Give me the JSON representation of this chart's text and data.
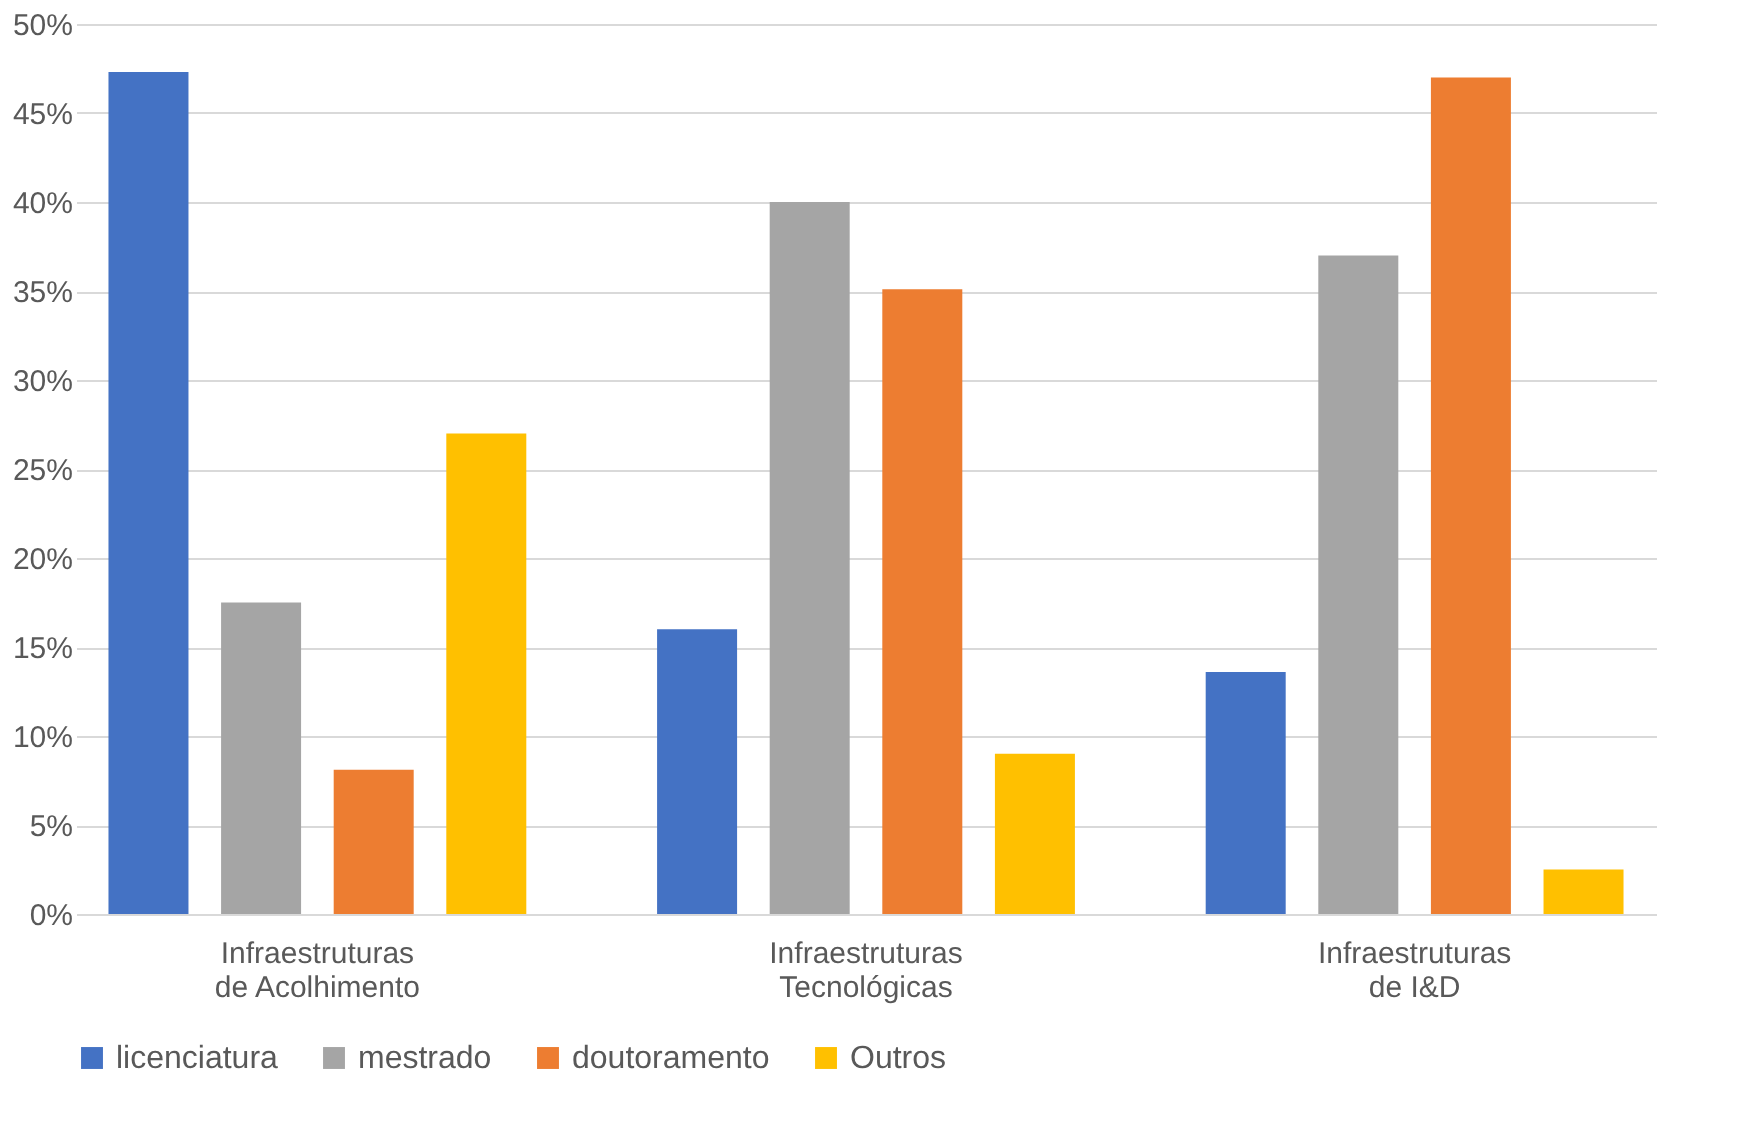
{
  "chart_data": {
    "type": "bar",
    "categories": [
      "Infraestruturas\nde Acolhimento",
      "Infraestruturas\nTecnológicas",
      "Infraestruturas\nde I&D"
    ],
    "series": [
      {
        "name": "licenciatura",
        "color": "#4472c4",
        "values": [
          47.3,
          16.0,
          13.6
        ]
      },
      {
        "name": "mestrado",
        "color": "#a5a5a5",
        "values": [
          17.5,
          40.0,
          37.0
        ]
      },
      {
        "name": "doutoramento",
        "color": "#ed7d31",
        "values": [
          8.1,
          35.1,
          47.0
        ]
      },
      {
        "name": "Outros",
        "color": "#ffc000",
        "values": [
          27.0,
          9.0,
          2.5
        ]
      }
    ],
    "ylim": [
      0,
      50
    ],
    "yticks": [
      {
        "value": 0,
        "label": "0%"
      },
      {
        "value": 5,
        "label": "5%"
      },
      {
        "value": 10,
        "label": "10%"
      },
      {
        "value": 15,
        "label": "15%"
      },
      {
        "value": 20,
        "label": "20%"
      },
      {
        "value": 25,
        "label": "25%"
      },
      {
        "value": 30,
        "label": "30%"
      },
      {
        "value": 35,
        "label": "35%"
      },
      {
        "value": 40,
        "label": "40%"
      },
      {
        "value": 45,
        "label": "45%"
      },
      {
        "value": 50,
        "label": "50%"
      }
    ],
    "grid": "y",
    "legend": "bottom"
  }
}
